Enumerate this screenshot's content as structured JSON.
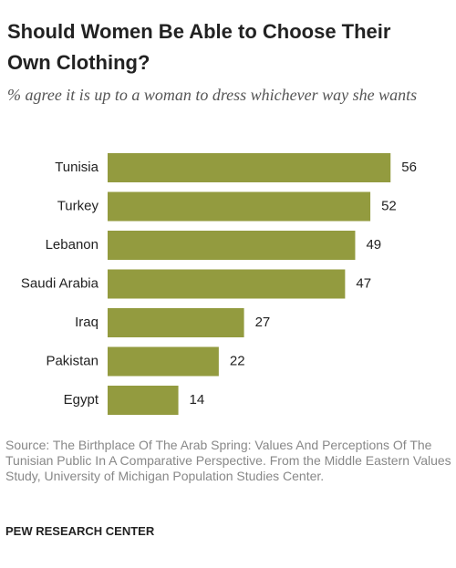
{
  "chart_data": {
    "type": "bar",
    "orientation": "horizontal",
    "title": "Should Women Be Able to Choose Their Own Clothing?",
    "subtitle": "% agree it is up to a woman to dress whichever way she wants",
    "categories": [
      "Tunisia",
      "Turkey",
      "Lebanon",
      "Saudi Arabia",
      "Iraq",
      "Pakistan",
      "Egypt"
    ],
    "values": [
      56,
      52,
      49,
      47,
      27,
      22,
      14
    ],
    "color": "#939b3f",
    "source": "Source: The Birthplace Of The Arab Spring: Values And Perceptions Of The Tunisian Public In A Comparative Perspective. From the Middle Eastern Values Study, University of Michigan Population Studies Center.",
    "footer": "PEW RESEARCH CENTER"
  }
}
